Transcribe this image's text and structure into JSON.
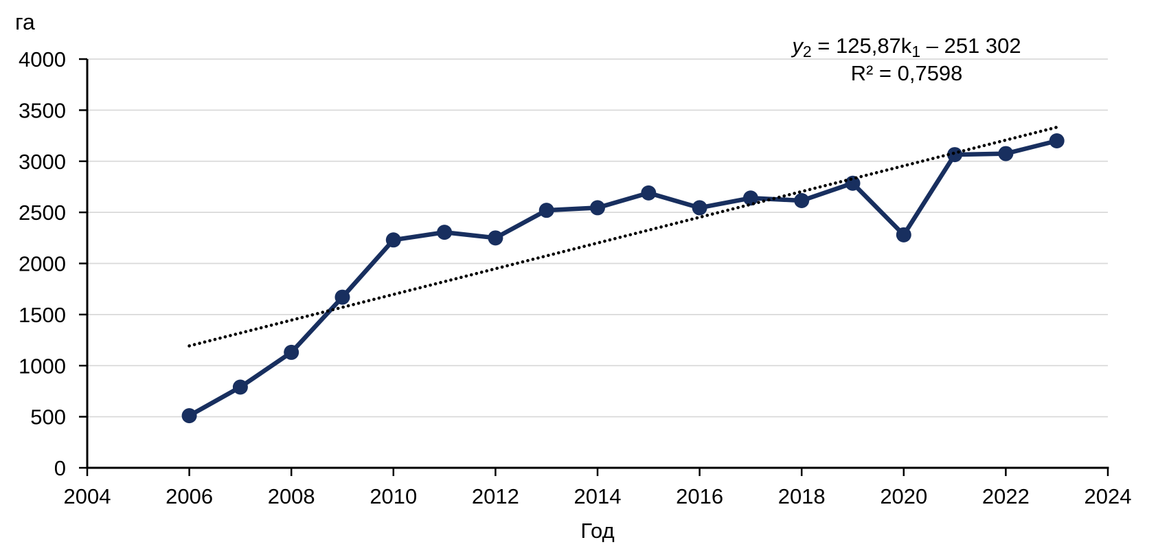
{
  "chart_data": {
    "type": "line",
    "title": "",
    "ylabel": "га",
    "xlabel": "Год",
    "x": [
      2006,
      2007,
      2008,
      2009,
      2010,
      2011,
      2012,
      2013,
      2014,
      2015,
      2016,
      2017,
      2018,
      2019,
      2020,
      2021,
      2022,
      2023
    ],
    "series": [
      {
        "name": "",
        "values": [
          510,
          790,
          1130,
          1670,
          2230,
          2305,
          2250,
          2520,
          2545,
          2690,
          2545,
          2640,
          2615,
          2785,
          2280,
          3065,
          3075,
          3200
        ]
      }
    ],
    "xlim": [
      2004,
      2024
    ],
    "ylim": [
      0,
      4000
    ],
    "x_ticks": [
      2004,
      2006,
      2008,
      2010,
      2012,
      2014,
      2016,
      2018,
      2020,
      2022,
      2024
    ],
    "y_ticks": [
      0,
      500,
      1000,
      1500,
      2000,
      2500,
      3000,
      3500,
      4000
    ],
    "grid": "horizontal",
    "legend": "none",
    "trendline": {
      "type": "linear",
      "slope": 125.87,
      "intercept": -251302,
      "x_start": 2006,
      "x_end": 2023,
      "style": "dotted"
    },
    "annotations": {
      "equation": {
        "lhs_var": "y",
        "lhs_sub": "2",
        "body": " = 125,87k",
        "body_sub": "1",
        "tail": " – 251 302"
      },
      "r_squared": "R² = 0,7598"
    },
    "colors": {
      "series_line": "#182f5f",
      "trendline": "#000000",
      "gridline": "#d9d9d9",
      "axis": "#000000",
      "text": "#000000"
    }
  }
}
